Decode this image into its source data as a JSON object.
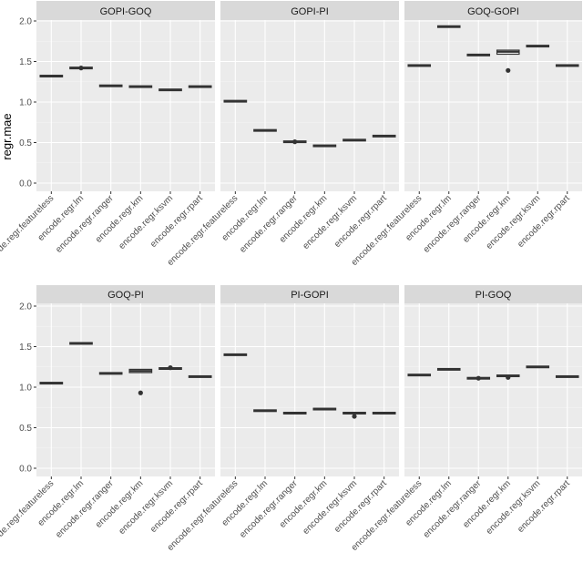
{
  "chart_data": {
    "type": "boxplot",
    "ylabel": "regr.mae",
    "xlabel": "",
    "ylim": [
      -0.08,
      2.1
    ],
    "yticks": [
      "0.0",
      "0.5",
      "1.0",
      "1.5",
      "2.0"
    ],
    "grid": true,
    "categories": [
      "encode.regr.featureless",
      "encode.regr.lm",
      "encode.regr.ranger",
      "encode.regr.km",
      "encode.regr.ksvm",
      "encode.regr.rpart"
    ],
    "facets": [
      {
        "title": "GOPI-GOQ",
        "medians": [
          1.32,
          1.42,
          1.2,
          1.19,
          1.15,
          1.19
        ],
        "q1": [
          1.31,
          1.41,
          1.19,
          1.18,
          1.14,
          1.18
        ],
        "q3": [
          1.33,
          1.43,
          1.21,
          1.2,
          1.16,
          1.2
        ],
        "outliers": [
          [],
          [
            1.42
          ],
          [],
          [],
          [],
          []
        ]
      },
      {
        "title": "GOPI-PI",
        "medians": [
          1.01,
          0.65,
          0.51,
          0.46,
          0.53,
          0.58
        ],
        "q1": [
          1.0,
          0.64,
          0.5,
          0.45,
          0.52,
          0.57
        ],
        "q3": [
          1.02,
          0.66,
          0.52,
          0.47,
          0.54,
          0.59
        ],
        "outliers": [
          [],
          [],
          [
            0.51
          ],
          [],
          [],
          []
        ]
      },
      {
        "title": "GOQ-GOPI",
        "medians": [
          1.45,
          1.93,
          1.58,
          1.62,
          1.69,
          1.45
        ],
        "q1": [
          1.44,
          1.92,
          1.57,
          1.59,
          1.68,
          1.44
        ],
        "q3": [
          1.46,
          1.94,
          1.59,
          1.64,
          1.7,
          1.46
        ],
        "outliers": [
          [],
          [],
          [],
          [
            1.39
          ],
          [],
          []
        ]
      },
      {
        "title": "GOQ-PI",
        "medians": [
          1.05,
          1.54,
          1.17,
          1.2,
          1.23,
          1.13
        ],
        "q1": [
          1.04,
          1.53,
          1.16,
          1.18,
          1.22,
          1.12
        ],
        "q3": [
          1.06,
          1.55,
          1.18,
          1.22,
          1.24,
          1.14
        ],
        "outliers": [
          [],
          [],
          [],
          [
            0.93
          ],
          [
            1.24
          ],
          []
        ]
      },
      {
        "title": "PI-GOPI",
        "medians": [
          1.4,
          0.71,
          0.68,
          0.73,
          0.68,
          0.68
        ],
        "q1": [
          1.39,
          0.7,
          0.67,
          0.72,
          0.67,
          0.67
        ],
        "q3": [
          1.41,
          0.72,
          0.69,
          0.74,
          0.69,
          0.69
        ],
        "outliers": [
          [],
          [],
          [],
          [],
          [
            0.64
          ],
          []
        ]
      },
      {
        "title": "PI-GOQ",
        "medians": [
          1.15,
          1.22,
          1.11,
          1.14,
          1.25,
          1.13
        ],
        "q1": [
          1.14,
          1.21,
          1.1,
          1.13,
          1.24,
          1.12
        ],
        "q3": [
          1.16,
          1.23,
          1.12,
          1.15,
          1.26,
          1.14
        ],
        "outliers": [
          [],
          [],
          [
            1.11
          ],
          [
            1.12
          ],
          [],
          []
        ]
      }
    ],
    "colors": {
      "panel": "#ebebeb",
      "strip": "#d9d9d9",
      "grid": "#ffffff",
      "box": "#333333"
    }
  }
}
